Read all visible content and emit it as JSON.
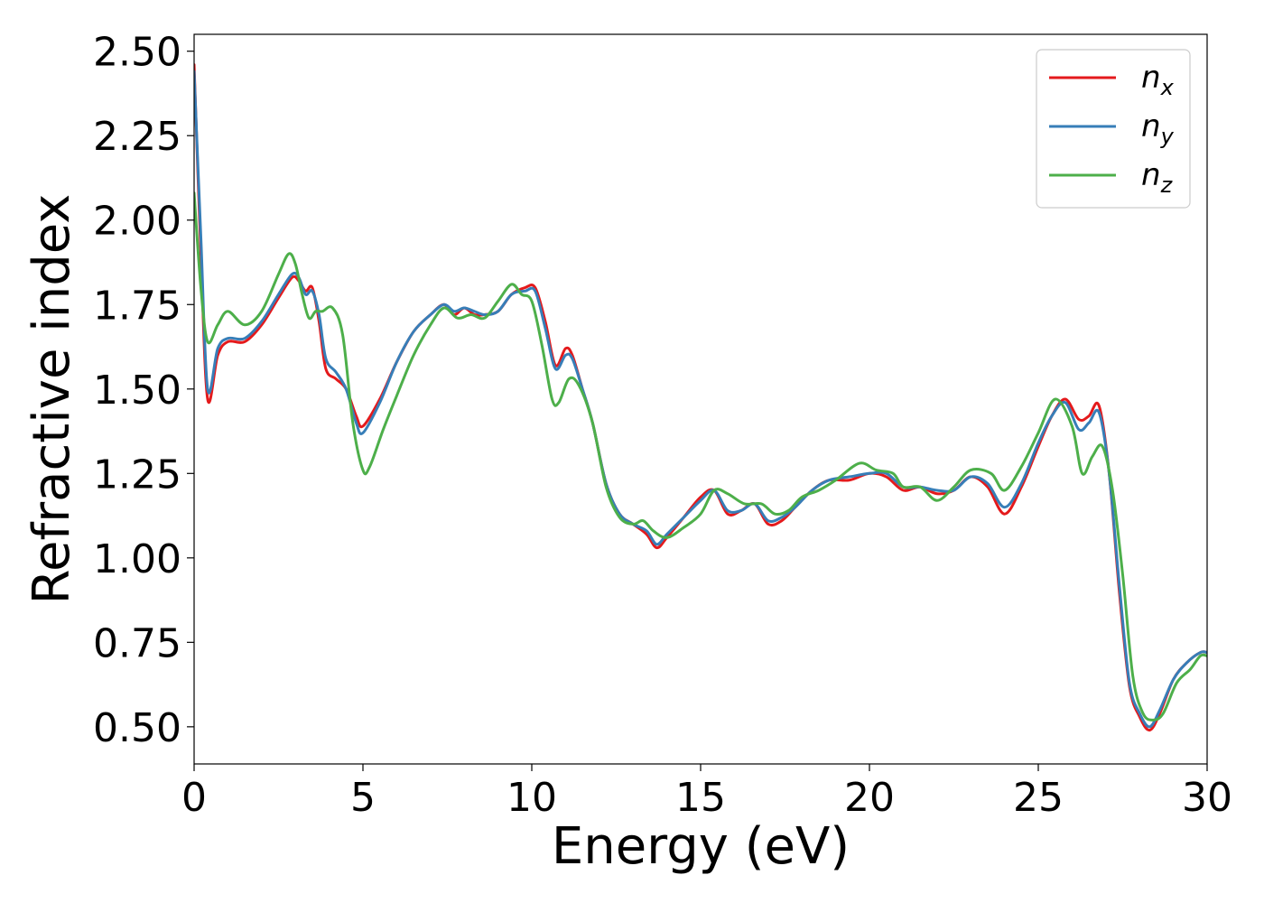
{
  "chart_data": {
    "type": "line",
    "title": "",
    "xlabel": "Energy (eV)",
    "ylabel": "Refractive index",
    "xlim": [
      0,
      30
    ],
    "ylim": [
      0.39,
      2.55
    ],
    "xticks": [
      0,
      5,
      10,
      15,
      20,
      25,
      30
    ],
    "xtick_labels": [
      "0",
      "5",
      "10",
      "15",
      "20",
      "25",
      "30"
    ],
    "yticks": [
      0.5,
      0.75,
      1.0,
      1.25,
      1.5,
      1.75,
      2.0,
      2.25,
      2.5
    ],
    "ytick_labels": [
      "0.50",
      "0.75",
      "1.00",
      "1.25",
      "1.50",
      "1.75",
      "2.00",
      "2.25",
      "2.50"
    ],
    "grid": false,
    "legend_position": "top-right",
    "series": [
      {
        "name": "n_x",
        "label_base": "n",
        "label_sub": "x",
        "color": "#e41a1c",
        "points": [
          [
            0,
            2.46
          ],
          [
            0.2,
            1.9
          ],
          [
            0.4,
            1.47
          ],
          [
            0.7,
            1.6
          ],
          [
            1.0,
            1.64
          ],
          [
            1.5,
            1.64
          ],
          [
            2.0,
            1.69
          ],
          [
            2.5,
            1.77
          ],
          [
            2.9,
            1.83
          ],
          [
            3.1,
            1.82
          ],
          [
            3.3,
            1.79
          ],
          [
            3.5,
            1.8
          ],
          [
            3.7,
            1.7
          ],
          [
            3.9,
            1.56
          ],
          [
            4.2,
            1.53
          ],
          [
            4.5,
            1.5
          ],
          [
            4.8,
            1.42
          ],
          [
            5.0,
            1.39
          ],
          [
            5.5,
            1.47
          ],
          [
            6.0,
            1.58
          ],
          [
            6.5,
            1.67
          ],
          [
            7.0,
            1.72
          ],
          [
            7.4,
            1.75
          ],
          [
            7.7,
            1.72
          ],
          [
            8.0,
            1.74
          ],
          [
            8.3,
            1.72
          ],
          [
            8.6,
            1.72
          ],
          [
            9.0,
            1.73
          ],
          [
            9.4,
            1.78
          ],
          [
            9.8,
            1.8
          ],
          [
            10.1,
            1.8
          ],
          [
            10.4,
            1.7
          ],
          [
            10.7,
            1.57
          ],
          [
            11.0,
            1.62
          ],
          [
            11.2,
            1.6
          ],
          [
            11.5,
            1.5
          ],
          [
            11.8,
            1.4
          ],
          [
            12.2,
            1.22
          ],
          [
            12.6,
            1.13
          ],
          [
            13.0,
            1.1
          ],
          [
            13.4,
            1.07
          ],
          [
            13.7,
            1.03
          ],
          [
            14.0,
            1.06
          ],
          [
            14.5,
            1.12
          ],
          [
            15.0,
            1.18
          ],
          [
            15.4,
            1.2
          ],
          [
            15.8,
            1.13
          ],
          [
            16.2,
            1.14
          ],
          [
            16.6,
            1.16
          ],
          [
            17.0,
            1.1
          ],
          [
            17.4,
            1.11
          ],
          [
            17.8,
            1.15
          ],
          [
            18.3,
            1.2
          ],
          [
            18.8,
            1.23
          ],
          [
            19.4,
            1.23
          ],
          [
            20.0,
            1.25
          ],
          [
            20.5,
            1.24
          ],
          [
            21.0,
            1.2
          ],
          [
            21.5,
            1.21
          ],
          [
            22.0,
            1.19
          ],
          [
            22.5,
            1.2
          ],
          [
            23.0,
            1.24
          ],
          [
            23.5,
            1.21
          ],
          [
            24.0,
            1.13
          ],
          [
            24.5,
            1.21
          ],
          [
            25.0,
            1.33
          ],
          [
            25.4,
            1.42
          ],
          [
            25.8,
            1.47
          ],
          [
            26.2,
            1.41
          ],
          [
            26.5,
            1.42
          ],
          [
            26.8,
            1.45
          ],
          [
            27.1,
            1.25
          ],
          [
            27.4,
            0.9
          ],
          [
            27.7,
            0.62
          ],
          [
            28.0,
            0.53
          ],
          [
            28.3,
            0.49
          ],
          [
            28.6,
            0.54
          ],
          [
            29.0,
            0.64
          ],
          [
            29.4,
            0.69
          ],
          [
            29.8,
            0.72
          ],
          [
            30.0,
            0.72
          ]
        ]
      },
      {
        "name": "n_y",
        "label_base": "n",
        "label_sub": "y",
        "color": "#377eb8",
        "points": [
          [
            0,
            2.44
          ],
          [
            0.2,
            1.95
          ],
          [
            0.4,
            1.5
          ],
          [
            0.7,
            1.62
          ],
          [
            1.0,
            1.65
          ],
          [
            1.5,
            1.65
          ],
          [
            2.0,
            1.7
          ],
          [
            2.5,
            1.78
          ],
          [
            2.9,
            1.84
          ],
          [
            3.1,
            1.83
          ],
          [
            3.3,
            1.78
          ],
          [
            3.5,
            1.79
          ],
          [
            3.7,
            1.72
          ],
          [
            3.9,
            1.59
          ],
          [
            4.2,
            1.55
          ],
          [
            4.5,
            1.5
          ],
          [
            4.8,
            1.4
          ],
          [
            5.0,
            1.37
          ],
          [
            5.5,
            1.46
          ],
          [
            6.0,
            1.58
          ],
          [
            6.5,
            1.67
          ],
          [
            7.0,
            1.72
          ],
          [
            7.4,
            1.75
          ],
          [
            7.7,
            1.73
          ],
          [
            8.0,
            1.74
          ],
          [
            8.3,
            1.73
          ],
          [
            8.6,
            1.72
          ],
          [
            9.0,
            1.73
          ],
          [
            9.4,
            1.78
          ],
          [
            9.8,
            1.79
          ],
          [
            10.1,
            1.79
          ],
          [
            10.4,
            1.68
          ],
          [
            10.7,
            1.56
          ],
          [
            11.0,
            1.6
          ],
          [
            11.2,
            1.59
          ],
          [
            11.5,
            1.5
          ],
          [
            11.8,
            1.4
          ],
          [
            12.2,
            1.22
          ],
          [
            12.6,
            1.13
          ],
          [
            13.0,
            1.1
          ],
          [
            13.4,
            1.08
          ],
          [
            13.7,
            1.04
          ],
          [
            14.0,
            1.07
          ],
          [
            14.5,
            1.12
          ],
          [
            15.0,
            1.17
          ],
          [
            15.4,
            1.2
          ],
          [
            15.8,
            1.14
          ],
          [
            16.2,
            1.14
          ],
          [
            16.6,
            1.16
          ],
          [
            17.0,
            1.11
          ],
          [
            17.4,
            1.12
          ],
          [
            17.8,
            1.15
          ],
          [
            18.3,
            1.2
          ],
          [
            18.8,
            1.23
          ],
          [
            19.4,
            1.24
          ],
          [
            20.0,
            1.25
          ],
          [
            20.5,
            1.25
          ],
          [
            21.0,
            1.21
          ],
          [
            21.5,
            1.21
          ],
          [
            22.0,
            1.2
          ],
          [
            22.5,
            1.2
          ],
          [
            23.0,
            1.24
          ],
          [
            23.5,
            1.22
          ],
          [
            24.0,
            1.15
          ],
          [
            24.5,
            1.22
          ],
          [
            25.0,
            1.34
          ],
          [
            25.4,
            1.42
          ],
          [
            25.8,
            1.46
          ],
          [
            26.2,
            1.38
          ],
          [
            26.5,
            1.4
          ],
          [
            26.8,
            1.43
          ],
          [
            27.1,
            1.25
          ],
          [
            27.4,
            0.92
          ],
          [
            27.7,
            0.63
          ],
          [
            28.0,
            0.54
          ],
          [
            28.3,
            0.5
          ],
          [
            28.6,
            0.55
          ],
          [
            29.0,
            0.64
          ],
          [
            29.4,
            0.69
          ],
          [
            29.8,
            0.72
          ],
          [
            30.0,
            0.72
          ]
        ]
      },
      {
        "name": "n_z",
        "label_base": "n",
        "label_sub": "z",
        "color": "#4daf4a",
        "points": [
          [
            0,
            2.08
          ],
          [
            0.2,
            1.8
          ],
          [
            0.4,
            1.64
          ],
          [
            0.7,
            1.69
          ],
          [
            1.0,
            1.73
          ],
          [
            1.5,
            1.69
          ],
          [
            2.0,
            1.73
          ],
          [
            2.5,
            1.84
          ],
          [
            2.8,
            1.9
          ],
          [
            3.0,
            1.87
          ],
          [
            3.2,
            1.78
          ],
          [
            3.4,
            1.71
          ],
          [
            3.6,
            1.73
          ],
          [
            3.8,
            1.73
          ],
          [
            4.1,
            1.74
          ],
          [
            4.4,
            1.66
          ],
          [
            4.7,
            1.4
          ],
          [
            5.0,
            1.26
          ],
          [
            5.2,
            1.27
          ],
          [
            5.6,
            1.38
          ],
          [
            6.0,
            1.48
          ],
          [
            6.5,
            1.6
          ],
          [
            7.0,
            1.69
          ],
          [
            7.4,
            1.74
          ],
          [
            7.8,
            1.71
          ],
          [
            8.2,
            1.72
          ],
          [
            8.6,
            1.71
          ],
          [
            9.0,
            1.76
          ],
          [
            9.4,
            1.81
          ],
          [
            9.7,
            1.78
          ],
          [
            10.0,
            1.76
          ],
          [
            10.3,
            1.63
          ],
          [
            10.6,
            1.47
          ],
          [
            10.8,
            1.46
          ],
          [
            11.1,
            1.53
          ],
          [
            11.4,
            1.51
          ],
          [
            11.8,
            1.4
          ],
          [
            12.2,
            1.21
          ],
          [
            12.6,
            1.12
          ],
          [
            13.0,
            1.1
          ],
          [
            13.3,
            1.11
          ],
          [
            13.6,
            1.08
          ],
          [
            14.0,
            1.06
          ],
          [
            14.5,
            1.09
          ],
          [
            15.0,
            1.13
          ],
          [
            15.4,
            1.2
          ],
          [
            15.8,
            1.19
          ],
          [
            16.3,
            1.16
          ],
          [
            16.8,
            1.16
          ],
          [
            17.2,
            1.13
          ],
          [
            17.6,
            1.14
          ],
          [
            18.0,
            1.18
          ],
          [
            18.5,
            1.2
          ],
          [
            19.0,
            1.23
          ],
          [
            19.7,
            1.28
          ],
          [
            20.2,
            1.26
          ],
          [
            20.7,
            1.25
          ],
          [
            21.0,
            1.21
          ],
          [
            21.5,
            1.21
          ],
          [
            22.0,
            1.17
          ],
          [
            22.5,
            1.21
          ],
          [
            23.0,
            1.26
          ],
          [
            23.6,
            1.25
          ],
          [
            24.0,
            1.2
          ],
          [
            24.5,
            1.27
          ],
          [
            25.0,
            1.37
          ],
          [
            25.5,
            1.47
          ],
          [
            26.0,
            1.39
          ],
          [
            26.3,
            1.25
          ],
          [
            26.6,
            1.3
          ],
          [
            26.9,
            1.33
          ],
          [
            27.2,
            1.2
          ],
          [
            27.5,
            0.95
          ],
          [
            27.8,
            0.65
          ],
          [
            28.1,
            0.54
          ],
          [
            28.4,
            0.52
          ],
          [
            28.7,
            0.54
          ],
          [
            29.1,
            0.63
          ],
          [
            29.5,
            0.67
          ],
          [
            29.8,
            0.71
          ],
          [
            30.0,
            0.71
          ]
        ]
      }
    ]
  }
}
